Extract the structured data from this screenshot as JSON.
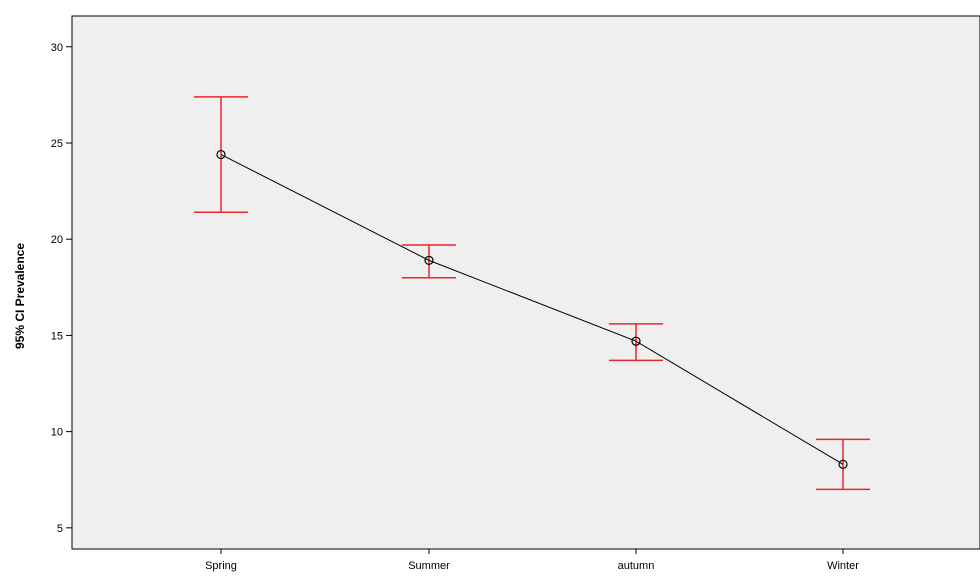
{
  "chart_data": {
    "type": "line",
    "title": "",
    "xlabel": "",
    "ylabel": "95% CI Prevalence",
    "categories": [
      "Spring",
      "Summer",
      "autumn",
      "Winter"
    ],
    "series": [
      {
        "mean": [
          24.4,
          18.9,
          14.7,
          8.3
        ],
        "ci_lower": [
          21.4,
          18.0,
          13.7,
          7.0
        ],
        "ci_upper": [
          27.4,
          19.7,
          15.6,
          9.6
        ]
      }
    ],
    "ylim": [
      3.9,
      31.6
    ],
    "yticks": [
      5,
      10,
      15,
      20,
      25,
      30
    ],
    "grid": false,
    "legend": "none",
    "colors": {
      "plot_background": "#efefef",
      "line": "#000000",
      "error_bar": "#e8262b"
    }
  }
}
